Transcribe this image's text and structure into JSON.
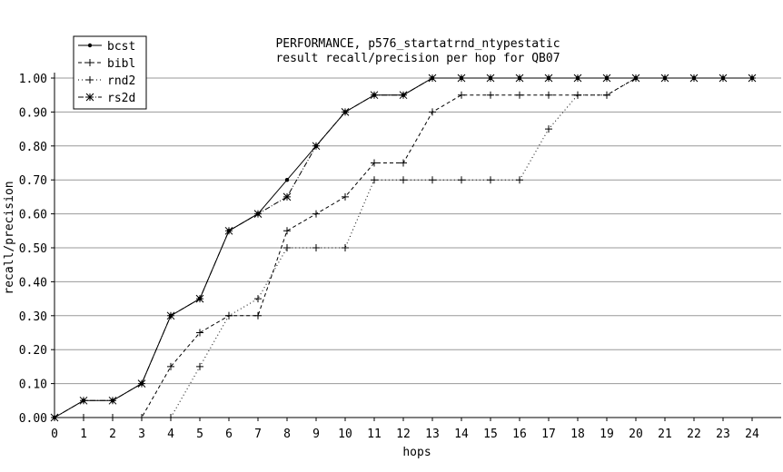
{
  "chart_data": {
    "type": "line",
    "title": "PERFORMANCE, p576_startatrnd_ntypestatic",
    "subtitle": "result recall/precision per hop for QB07",
    "xlabel": "hops",
    "ylabel": "recall/precision",
    "xlim": [
      0,
      24
    ],
    "ylim": [
      0,
      1.0
    ],
    "x_ticks": [
      "0",
      "1",
      "2",
      "3",
      "4",
      "5",
      "6",
      "7",
      "8",
      "9",
      "10",
      "11",
      "12",
      "13",
      "14",
      "15",
      "16",
      "17",
      "18",
      "19",
      "20",
      "21",
      "22",
      "23",
      "24"
    ],
    "y_ticks": [
      "0.00",
      "0.10",
      "0.20",
      "0.30",
      "0.40",
      "0.50",
      "0.60",
      "0.70",
      "0.80",
      "0.90",
      "1.00"
    ],
    "grid": "horizontal",
    "legend_position": "top-left",
    "x": [
      0,
      1,
      2,
      3,
      4,
      5,
      6,
      7,
      8,
      9,
      10,
      11,
      12,
      13,
      14,
      15,
      16,
      17,
      18,
      19,
      20,
      21,
      22,
      23,
      24
    ],
    "series": [
      {
        "name": "bcst",
        "style": "solid",
        "marker": "dot",
        "values": [
          0,
          0.05,
          0.05,
          0.1,
          0.3,
          0.35,
          0.55,
          0.6,
          0.7,
          0.8,
          0.9,
          0.95,
          0.95,
          1,
          1,
          1,
          1,
          1,
          1,
          1,
          1,
          1,
          1,
          1,
          1
        ]
      },
      {
        "name": "bibl",
        "style": "dashed",
        "marker": "plus",
        "values": [
          0,
          0,
          0,
          0,
          0.15,
          0.25,
          0.3,
          0.3,
          0.55,
          0.6,
          0.65,
          0.75,
          0.75,
          0.9,
          0.95,
          0.95,
          0.95,
          0.95,
          0.95,
          0.95,
          1,
          1,
          1,
          1,
          1
        ]
      },
      {
        "name": "rnd2",
        "style": "dotted",
        "marker": "plus",
        "values": [
          0,
          0,
          0,
          0,
          0,
          0.15,
          0.3,
          0.35,
          0.5,
          0.5,
          0.5,
          0.7,
          0.7,
          0.7,
          0.7,
          0.7,
          0.7,
          0.85,
          0.95,
          0.95,
          1,
          1,
          1,
          1,
          1
        ]
      },
      {
        "name": "rs2d",
        "style": "dashdot",
        "marker": "x",
        "values": [
          0,
          0.05,
          0.05,
          0.1,
          0.3,
          0.35,
          0.55,
          0.6,
          0.65,
          0.8,
          0.9,
          0.95,
          0.95,
          1,
          1,
          1,
          1,
          1,
          1,
          1,
          1,
          1,
          1,
          1,
          1
        ]
      }
    ]
  }
}
